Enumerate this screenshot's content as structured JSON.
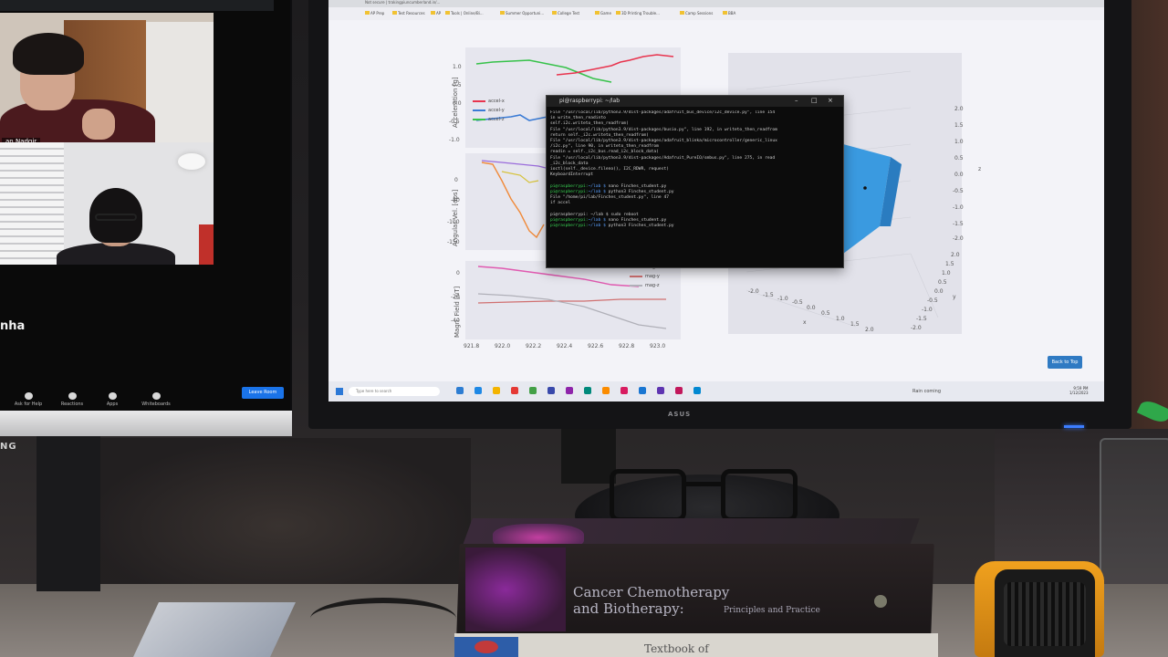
{
  "left_monitor": {
    "video_tiles": [
      {
        "name_label": "an Nadgir"
      },
      {
        "name_label": ""
      }
    ],
    "participant_name": "nha",
    "toolbar": [
      {
        "label": "Ask for Help",
        "icon": "help-icon"
      },
      {
        "label": "Reactions",
        "icon": "reactions-icon"
      },
      {
        "label": "Apps",
        "icon": "apps-icon"
      },
      {
        "label": "Whiteboards",
        "icon": "whiteboard-icon"
      }
    ],
    "leave_label": "Leave Room",
    "brand": "NG"
  },
  "browser": {
    "address": "Not secure | trakingpiuncumberland.in/...",
    "bookmarks": [
      "AP Prep",
      "Test Resources",
      "AP",
      "Tools | Online/Bi...",
      "Summer Opportuni...",
      "College Test",
      "Game",
      "3D Printing Trouble...",
      "Camp Sessions",
      "BBA"
    ]
  },
  "plots": {
    "accel": {
      "ylabel": "Acceleration [g]",
      "yticks": [
        "1.0",
        "0.5",
        "0.0",
        "-0.5",
        "-1.0"
      ],
      "legend": [
        "accel-x",
        "accel-y",
        "accel-z"
      ],
      "legend_colors": [
        "#e8344e",
        "#3a7bd5",
        "#37c24a"
      ]
    },
    "angvel": {
      "ylabel": "Angular Vel. [dps]",
      "yticks": [
        "0",
        "-50",
        "-100",
        "-150"
      ]
    },
    "mag": {
      "ylabel": "Magn. Field [uT]",
      "yticks": [
        "0",
        "-20",
        "-40"
      ],
      "legend": [
        "mag-x",
        "mag-y",
        "mag-z"
      ],
      "xticks": [
        "921.8",
        "922.0",
        "922.2",
        "922.4",
        "922.6",
        "922.8",
        "923.0"
      ]
    },
    "plot3d": {
      "z_ticks": [
        "2.0",
        "1.5",
        "1.0",
        "0.5",
        "0.0",
        "-0.5",
        "-1.0",
        "-1.5",
        "-2.0"
      ],
      "y_ticks": [
        "2.0",
        "1.5",
        "1.0",
        "0.5",
        "0.0",
        "-0.5",
        "-1.0",
        "-1.5",
        "-2.0"
      ],
      "x_ticks": [
        "-2.0",
        "-1.5",
        "-1.0",
        "-0.5",
        "0.0",
        "0.5",
        "1.0",
        "1.5",
        "2.0"
      ],
      "axis_z": "z",
      "axis_y": "y",
      "axis_x": "x",
      "cube_color": "#3a9ae0"
    }
  },
  "terminal": {
    "title": "pi@raspberrypi: ~/lab",
    "lines": [
      {
        "text": "File \"/usr/local/lib/python3.9/dist-packages/adafruit_bus_device/i2c_device.py\", line 154"
      },
      {
        "text": "in write_then_readinto"
      },
      {
        "text": "  self.i2c.writeto_then_readfrom("
      },
      {
        "text": "File \"/usr/local/lib/python3.9/dist-packages/busio.py\", line 192, in writeto_then_readfrom"
      },
      {
        "text": "  return self._i2c.writeto_then_readfrom("
      },
      {
        "text": "File \"/usr/local/lib/python3.9/dist-packages/adafruit_blinka/microcontroller/generic_linux"
      },
      {
        "text": "/i2c.py\", line 90, in writeto_then_readfrom"
      },
      {
        "text": "  readin = self._i2c_bus.read_i2c_block_data("
      },
      {
        "text": "File \"/usr/local/lib/python3.9/dist-packages/Adafruit_PureIO/smbus.py\", line 275, in read"
      },
      {
        "text": "_i2c_block_data"
      },
      {
        "text": "  ioctl(self._device.fileno(), I2C_RDWR, request)"
      },
      {
        "text": "KeyboardInterrupt"
      },
      {
        "text": ""
      },
      {
        "prompt": "pi@raspberrypi:",
        "path": "~/lab $",
        "text": " nano Finches_student.py"
      },
      {
        "prompt": "pi@raspberrypi:",
        "path": "~/lab $",
        "text": " python3 Finches_student.py"
      },
      {
        "text": "  File \"/home/pi/lab/Finches_student.py\", line 47"
      },
      {
        "text": "    if accel"
      },
      {
        "text": ""
      },
      {
        "text": "pi@raspberrypi: ~/lab $ sudo reboot"
      },
      {
        "prompt": "pi@raspberrypi:",
        "path": "~/lab $",
        "text": " nano Finches_student.py"
      },
      {
        "prompt": "pi@raspberrypi:",
        "path": "~/lab $",
        "text": " python3 Finches_student.py"
      }
    ]
  },
  "back_to_top_label": "Back to Top",
  "taskbar": {
    "search_placeholder": "Type here to search",
    "weather": "Rain coming",
    "time": "9:59 PM",
    "date": "1/12/2023"
  },
  "monitor_brand": "ASUS",
  "book": {
    "title": "Cancer Chemotherapy",
    "subtitle_main": "and Biotherapy:",
    "subtitle_rest": "Principles and Practice",
    "bottom_title": "Textbook of"
  }
}
